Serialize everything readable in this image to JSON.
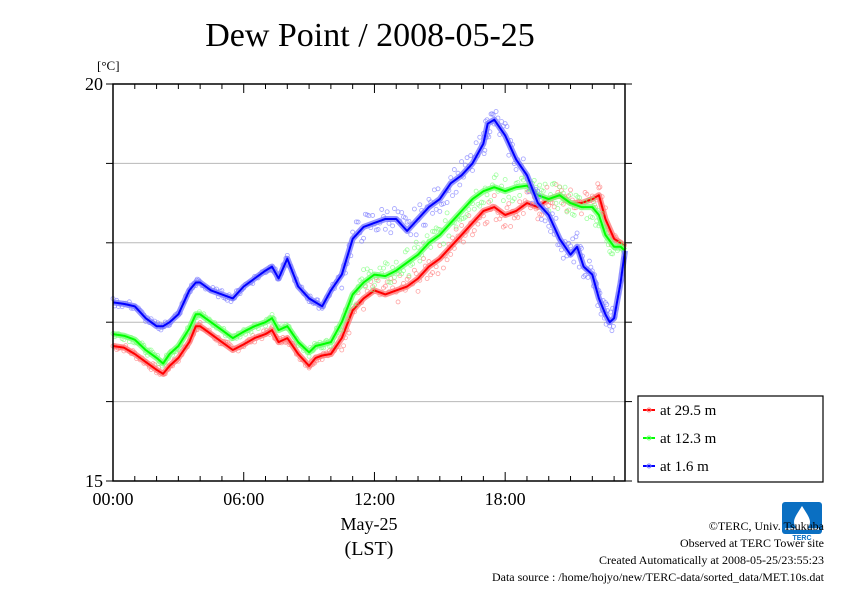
{
  "chart_data": {
    "type": "line",
    "title": "Dew Point / 2008-05-25",
    "ylabel": "[°C]",
    "xlabel": "May-25",
    "xunit": "(LST)",
    "ylim": [
      15,
      20
    ],
    "xlim": [
      0,
      23.5
    ],
    "x_ticks": [
      {
        "value": 0,
        "label": "00:00"
      },
      {
        "value": 6,
        "label": "06:00"
      },
      {
        "value": 12,
        "label": "12:00"
      },
      {
        "value": 18,
        "label": "18:00"
      }
    ],
    "y_ticks": [
      {
        "value": 20,
        "label": "20"
      },
      {
        "value": 15,
        "label": "15"
      }
    ],
    "grid": true,
    "legend_position": "outside-right-bottom",
    "series": [
      {
        "name": "at 29.5 m",
        "color": "#ff0000",
        "x": [
          0,
          0.5,
          1,
          1.5,
          2,
          2.3,
          2.6,
          3,
          3.5,
          3.8,
          4,
          4.5,
          5,
          5.5,
          6,
          6.5,
          7,
          7.3,
          7.6,
          8,
          8.5,
          9,
          9.3,
          9.6,
          10,
          10.5,
          11,
          11.5,
          12,
          12.5,
          13,
          13.5,
          14,
          14.5,
          15,
          15.5,
          16,
          16.5,
          17,
          17.5,
          18,
          18.5,
          19,
          19.5,
          20,
          20.5,
          21,
          21.5,
          22,
          22.3,
          22.6,
          23,
          23.3,
          23.5
        ],
        "values": [
          16.7,
          16.68,
          16.6,
          16.5,
          16.4,
          16.35,
          16.45,
          16.55,
          16.75,
          16.95,
          16.95,
          16.85,
          16.75,
          16.65,
          16.72,
          16.8,
          16.85,
          16.9,
          16.75,
          16.8,
          16.6,
          16.45,
          16.55,
          16.58,
          16.6,
          16.8,
          17.15,
          17.3,
          17.4,
          17.35,
          17.4,
          17.45,
          17.55,
          17.7,
          17.8,
          17.95,
          18.1,
          18.25,
          18.4,
          18.45,
          18.35,
          18.4,
          18.5,
          18.45,
          18.55,
          18.6,
          18.5,
          18.5,
          18.55,
          18.6,
          18.3,
          18.05,
          18.0,
          17.95
        ]
      },
      {
        "name": "at 12.3 m",
        "color": "#00ff00",
        "x": [
          0,
          0.5,
          1,
          1.5,
          2,
          2.3,
          2.6,
          3,
          3.5,
          3.8,
          4,
          4.5,
          5,
          5.5,
          6,
          6.5,
          7,
          7.3,
          7.6,
          8,
          8.5,
          9,
          9.3,
          9.6,
          10,
          10.5,
          11,
          11.5,
          12,
          12.5,
          13,
          13.5,
          14,
          14.5,
          15,
          15.5,
          16,
          16.5,
          17,
          17.5,
          18,
          18.5,
          19,
          19.5,
          20,
          20.5,
          21,
          21.5,
          22,
          22.3,
          22.6,
          23,
          23.3,
          23.5
        ],
        "values": [
          16.85,
          16.83,
          16.78,
          16.65,
          16.55,
          16.48,
          16.6,
          16.7,
          16.92,
          17.1,
          17.1,
          17.0,
          16.9,
          16.8,
          16.88,
          16.95,
          17.0,
          17.05,
          16.9,
          16.95,
          16.75,
          16.62,
          16.7,
          16.72,
          16.75,
          17.0,
          17.35,
          17.5,
          17.6,
          17.58,
          17.65,
          17.75,
          17.85,
          18.0,
          18.1,
          18.25,
          18.4,
          18.55,
          18.65,
          18.7,
          18.65,
          18.7,
          18.72,
          18.6,
          18.55,
          18.6,
          18.5,
          18.45,
          18.45,
          18.35,
          18.1,
          17.95,
          17.95,
          17.9
        ]
      },
      {
        "name": "at 1.6 m",
        "color": "#0000ff",
        "x": [
          0,
          0.5,
          1,
          1.5,
          2,
          2.3,
          2.6,
          3,
          3.5,
          3.8,
          4,
          4.5,
          5,
          5.5,
          6,
          6.5,
          7,
          7.3,
          7.6,
          8,
          8.5,
          9,
          9.3,
          9.6,
          10,
          10.5,
          11,
          11.5,
          12,
          12.5,
          13,
          13.5,
          14,
          14.5,
          15,
          15.5,
          16,
          16.5,
          17,
          17.2,
          17.5,
          18,
          18.5,
          19,
          19.5,
          20,
          20.5,
          21,
          21.3,
          21.6,
          22,
          22.3,
          22.6,
          22.8,
          23,
          23.3,
          23.5
        ],
        "values": [
          17.25,
          17.23,
          17.2,
          17.05,
          16.95,
          16.95,
          17.0,
          17.1,
          17.4,
          17.5,
          17.5,
          17.4,
          17.35,
          17.3,
          17.45,
          17.55,
          17.65,
          17.7,
          17.55,
          17.8,
          17.45,
          17.3,
          17.25,
          17.2,
          17.4,
          17.6,
          18.05,
          18.2,
          18.25,
          18.3,
          18.3,
          18.15,
          18.3,
          18.45,
          18.55,
          18.75,
          18.85,
          19.0,
          19.25,
          19.5,
          19.55,
          19.35,
          19.05,
          18.85,
          18.5,
          18.35,
          18.05,
          17.85,
          17.95,
          17.7,
          17.6,
          17.3,
          17.1,
          17.0,
          17.05,
          17.5,
          17.9
        ]
      }
    ]
  },
  "credits": {
    "copyright": "©TERC, Univ. Tsukuba",
    "site": "Observed at TERC Tower site",
    "created": "Created Automatically at 2008-05-25/23:55:23",
    "source": "Data source : /home/hojyo/new/TERC-data/sorted_data/MET.10s.dat"
  },
  "logo": {
    "text": "TERC",
    "color": "#0a6fc2"
  }
}
